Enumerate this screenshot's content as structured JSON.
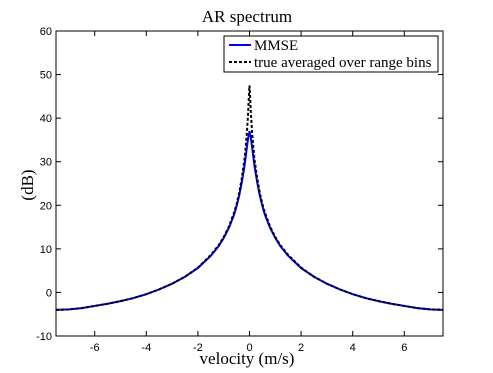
{
  "chart_data": {
    "type": "line",
    "title": "AR spectrum",
    "xlabel": "velocity (m/s)",
    "ylabel": "(dB)",
    "xlim": [
      -7.5,
      7.5
    ],
    "ylim": [
      -10,
      60
    ],
    "xticks": [
      -6,
      -4,
      -2,
      0,
      2,
      4,
      6
    ],
    "yticks": [
      -10,
      0,
      10,
      20,
      30,
      40,
      50,
      60
    ],
    "xtick_labels": [
      "-6",
      "-4",
      "-2",
      "0",
      "2",
      "4",
      "6"
    ],
    "ytick_labels": [
      "-10",
      "0",
      "10",
      "20",
      "30",
      "40",
      "50",
      "60"
    ],
    "grid": false,
    "legend_position": "top-right",
    "series": [
      {
        "name": "MMSE",
        "color": "#0000ff",
        "line_style": "solid",
        "x": [
          -7.5,
          -7,
          -6.5,
          -6,
          -5.5,
          -5,
          -4.5,
          -4,
          -3.5,
          -3,
          -2.5,
          -2,
          -1.5,
          -1.2,
          -1,
          -0.8,
          -0.6,
          -0.5,
          -0.4,
          -0.3,
          -0.2,
          -0.15,
          -0.1,
          -0.05,
          0,
          0.05,
          0.1,
          0.15,
          0.2,
          0.3,
          0.4,
          0.5,
          0.6,
          0.8,
          1,
          1.2,
          1.5,
          2,
          2.5,
          3,
          3.5,
          4,
          4.5,
          5,
          5.5,
          6,
          6.5,
          7,
          7.5
        ],
        "y": [
          -4,
          -3.9,
          -3.6,
          -3.1,
          -2.6,
          -2,
          -1.3,
          -0.4,
          0.7,
          2,
          3.6,
          5.6,
          8.4,
          10.6,
          12.5,
          14.8,
          17.8,
          19.8,
          22.2,
          25.2,
          28.8,
          31,
          33.4,
          35.5,
          37,
          35.5,
          33.4,
          31,
          28.8,
          25.2,
          22.2,
          19.8,
          17.8,
          14.8,
          12.5,
          10.6,
          8.4,
          5.6,
          3.6,
          2,
          0.7,
          -0.4,
          -1.3,
          -2,
          -2.6,
          -3.1,
          -3.6,
          -3.9,
          -4
        ]
      },
      {
        "name": "true averaged over range bins",
        "color": "#000000",
        "line_style": "dashed",
        "x": [
          -7.5,
          -7,
          -6.5,
          -6,
          -5.5,
          -5,
          -4.5,
          -4,
          -3.5,
          -3,
          -2.5,
          -2,
          -1.5,
          -1.2,
          -1,
          -0.8,
          -0.6,
          -0.5,
          -0.4,
          -0.3,
          -0.2,
          -0.15,
          -0.1,
          -0.05,
          -0.02,
          0,
          0.02,
          0.05,
          0.1,
          0.15,
          0.2,
          0.3,
          0.4,
          0.5,
          0.6,
          0.8,
          1,
          1.2,
          1.5,
          2,
          2.5,
          3,
          3.5,
          4,
          4.5,
          5,
          5.5,
          6,
          6.5,
          7,
          7.5
        ],
        "y": [
          -4,
          -3.9,
          -3.6,
          -3.1,
          -2.6,
          -2,
          -1.3,
          -0.4,
          0.7,
          2,
          3.6,
          5.7,
          8.6,
          10.8,
          12.7,
          15.1,
          18.3,
          20.3,
          22.8,
          26.2,
          30.3,
          33.2,
          36.8,
          41.5,
          45.5,
          47.5,
          45.5,
          41.5,
          36.8,
          33.2,
          30.3,
          26.2,
          22.8,
          20.3,
          18.3,
          15.1,
          12.7,
          10.8,
          8.6,
          5.7,
          3.6,
          2,
          0.7,
          -0.4,
          -1.3,
          -2,
          -2.6,
          -3.1,
          -3.6,
          -3.9,
          -4
        ]
      }
    ]
  }
}
